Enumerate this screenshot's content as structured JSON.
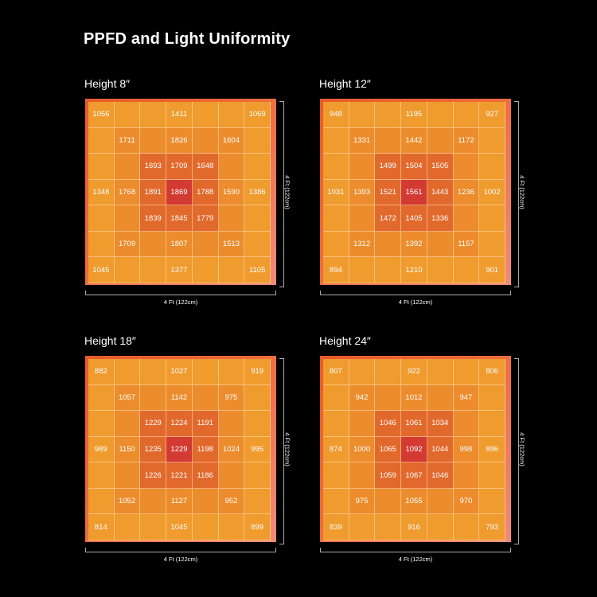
{
  "title": "PPFD and Light Uniformity",
  "chart_data": [
    {
      "type": "heatmap",
      "title": "Height 8″",
      "xlabel": "4 Ft (122cm)",
      "ylabel": "4 Ft (122cm)",
      "grid": [
        [
          "1056",
          "",
          "",
          "1411",
          "",
          "",
          "1069"
        ],
        [
          "",
          "1711",
          "",
          "1826",
          "",
          "1604",
          ""
        ],
        [
          "",
          "",
          "1693",
          "1709",
          "1648",
          "",
          ""
        ],
        [
          "1348",
          "1768",
          "1891",
          "1869",
          "1788",
          "1590",
          "1386"
        ],
        [
          "",
          "",
          "1839",
          "1845",
          "1779",
          "",
          ""
        ],
        [
          "",
          "1709",
          "",
          "1807",
          "",
          "1513",
          ""
        ],
        [
          "1045",
          "",
          "",
          "1377",
          "",
          "",
          "1105"
        ]
      ]
    },
    {
      "type": "heatmap",
      "title": "Height 12″",
      "xlabel": "4 Ft (122cm)",
      "ylabel": "4 Ft (122cm)",
      "grid": [
        [
          "948",
          "",
          "",
          "1195",
          "",
          "",
          "927"
        ],
        [
          "",
          "1331",
          "",
          "1442",
          "",
          "1172",
          ""
        ],
        [
          "",
          "",
          "1499",
          "1504",
          "1505",
          "",
          ""
        ],
        [
          "1031",
          "1393",
          "1521",
          "1561",
          "1443",
          "1236",
          "1002"
        ],
        [
          "",
          "",
          "1472",
          "1405",
          "1336",
          "",
          ""
        ],
        [
          "",
          "1312",
          "",
          "1392",
          "",
          "1157",
          ""
        ],
        [
          "894",
          "",
          "",
          "1210",
          "",
          "",
          "901"
        ]
      ]
    },
    {
      "type": "heatmap",
      "title": "Height 18″",
      "xlabel": "4 Ft (122cm)",
      "ylabel": "4 Ft (122cm)",
      "grid": [
        [
          "882",
          "",
          "",
          "1027",
          "",
          "",
          "919"
        ],
        [
          "",
          "1057",
          "",
          "1142",
          "",
          "975",
          ""
        ],
        [
          "",
          "",
          "1229",
          "1224",
          "1191",
          "",
          ""
        ],
        [
          "989",
          "1150",
          "1235",
          "1229",
          "1198",
          "1024",
          "995"
        ],
        [
          "",
          "",
          "1226",
          "1221",
          "1186",
          "",
          ""
        ],
        [
          "",
          "1052",
          "",
          "1127",
          "",
          "952",
          ""
        ],
        [
          "814",
          "",
          "",
          "1045",
          "",
          "",
          "899"
        ]
      ]
    },
    {
      "type": "heatmap",
      "title": "Height 24″",
      "xlabel": "4 Ft (122cm)",
      "ylabel": "4 Ft (122cm)",
      "grid": [
        [
          "807",
          "",
          "",
          "922",
          "",
          "",
          "806"
        ],
        [
          "",
          "942",
          "",
          "1012",
          "",
          "947",
          ""
        ],
        [
          "",
          "",
          "1046",
          "1061",
          "1034",
          "",
          ""
        ],
        [
          "874",
          "1000",
          "1065",
          "1092",
          "1044",
          "998",
          "896"
        ],
        [
          "",
          "",
          "1059",
          "1067",
          "1046",
          "",
          ""
        ],
        [
          "",
          "975",
          "",
          "1055",
          "",
          "970",
          ""
        ],
        [
          "839",
          "",
          "",
          "916",
          "",
          "",
          "793"
        ]
      ]
    }
  ],
  "colors": {
    "background": "#000000",
    "cell_light": "#ef9b2e",
    "cell_mid": "#ec8c2c",
    "cell_inner": "#e2692c",
    "cell_center": "#d23a32",
    "frame": "#e85a2c"
  }
}
